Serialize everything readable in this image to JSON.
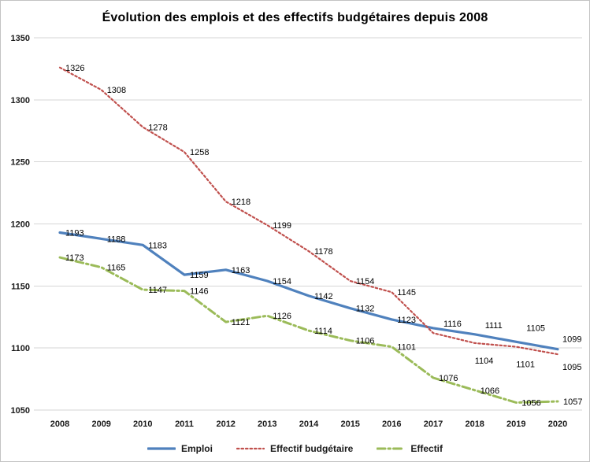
{
  "chart_data": {
    "type": "line",
    "title": "Évolution des emplois et des effectifs budgétaires depuis 2008",
    "x": [
      2008,
      2009,
      2010,
      2011,
      2012,
      2013,
      2014,
      2015,
      2016,
      2017,
      2018,
      2019,
      2020
    ],
    "series": [
      {
        "name": "Emploi",
        "color": "#4F81BD",
        "line_style": "solid",
        "values": [
          1193,
          1188,
          1183,
          1159,
          1163,
          1154,
          1142,
          1132,
          1123,
          1116,
          1111,
          1105,
          1099
        ]
      },
      {
        "name": "Effectif budgétaire",
        "color": "#C0504D",
        "line_style": "dotted",
        "values": [
          1326,
          1308,
          1278,
          1258,
          1218,
          1199,
          1178,
          1154,
          1145,
          1112,
          1104,
          1101,
          1095
        ],
        "unlabeled_indices": [
          9
        ]
      },
      {
        "name": "Effectif",
        "color": "#9BBB59",
        "line_style": "dash-dot",
        "values": [
          1173,
          1165,
          1147,
          1146,
          1121,
          1126,
          1114,
          1106,
          1101,
          1076,
          1066,
          1056,
          1057
        ]
      }
    ],
    "ylim": [
      1050,
      1350
    ],
    "y_ticks": [
      1050,
      1100,
      1150,
      1200,
      1250,
      1300,
      1350
    ],
    "grid": true,
    "legend_position": "bottom",
    "axis_text_color": "#1a1a1a",
    "gridline_color": "#d6d6d6"
  }
}
